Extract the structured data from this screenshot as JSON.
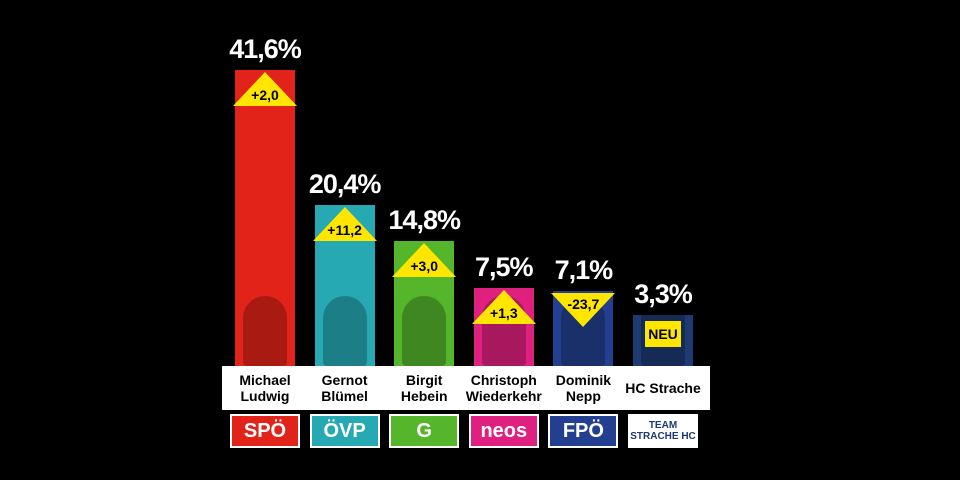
{
  "chart_data": {
    "type": "bar",
    "categories": [
      "Michael Ludwig",
      "Gernot Blümel",
      "Birgit Hebein",
      "Christoph Wiederkehr",
      "Dominik Nepp",
      "HC Strache"
    ],
    "values": [
      41.6,
      20.4,
      14.8,
      7.5,
      7.1,
      3.3
    ],
    "value_labels": [
      "41,6%",
      "20,4%",
      "14,8%",
      "7,5%",
      "7,1%",
      "3,3%"
    ],
    "colors": [
      "#e2231a",
      "#26a9b3",
      "#55b52b",
      "#e0207f",
      "#22408f",
      "#1d3a72"
    ],
    "change": {
      "values": [
        2.0,
        11.2,
        3.0,
        1.3,
        -23.7,
        null
      ],
      "value_labels": [
        "+2,0",
        "+11,2",
        "+3,0",
        "+1,3",
        "-23,7",
        "NEU"
      ]
    },
    "parties": [
      "SPÖ",
      "ÖVP",
      "G",
      "neos",
      "FPÖ",
      "TEAM STRACHE HC"
    ]
  }
}
